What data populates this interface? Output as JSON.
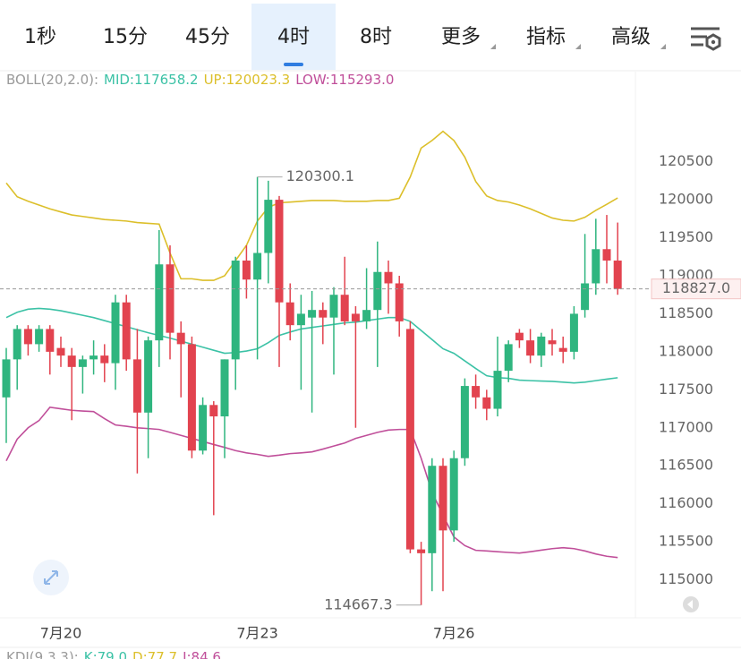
{
  "tabs": [
    "1秒",
    "15分",
    "45分",
    "4时",
    "8时",
    "更多",
    "指标",
    "高级"
  ],
  "selected_tab": 3,
  "chart_data": {
    "type": "candlestick",
    "indicator": "BOLL(20,2.0):",
    "categories": [
      null,
      null,
      null,
      null,
      null,
      "7月20",
      null,
      null,
      null,
      null,
      null,
      null,
      null,
      null,
      null,
      null,
      null,
      null,
      null,
      null,
      null,
      null,
      null,
      "7月23",
      null,
      null,
      null,
      null,
      null,
      null,
      null,
      null,
      null,
      null,
      null,
      null,
      null,
      null,
      null,
      null,
      null,
      "7月26",
      null,
      null,
      null,
      null,
      null,
      null,
      null,
      null,
      null,
      null,
      null,
      null,
      null,
      null,
      null
    ],
    "candles": {
      "up_color": "#2fb57f",
      "down_color": "#e2434f",
      "open": [
        117400,
        117900,
        118300,
        118100,
        118300,
        118050,
        117950,
        117800,
        117900,
        117950,
        117850,
        118650,
        117900,
        117200,
        118150,
        119150,
        118250,
        118100,
        116700,
        117300,
        117150,
        117900,
        119200,
        118950,
        119300,
        120000,
        118650,
        118350,
        118450,
        118550,
        118450,
        118750,
        118500,
        118400,
        118550,
        119050,
        118900,
        118300,
        115400,
        115350,
        116500,
        115650,
        116600,
        117550,
        117400,
        117250,
        117750,
        118250,
        118150,
        117950,
        118150,
        118050,
        118000,
        118550,
        118900,
        119350,
        119200
      ],
      "high": [
        118050,
        118350,
        118350,
        118350,
        118350,
        118200,
        118050,
        117950,
        118150,
        118100,
        118750,
        118750,
        118300,
        118200,
        119600,
        119400,
        118400,
        118200,
        117400,
        117350,
        117900,
        119250,
        119400,
        120300.1,
        120250,
        120050,
        118900,
        118750,
        118800,
        118650,
        118850,
        119250,
        118600,
        119100,
        119450,
        119200,
        119000,
        118400,
        115500,
        116600,
        116600,
        116700,
        117650,
        117700,
        117500,
        118200,
        118150,
        118300,
        118300,
        118250,
        118300,
        118200,
        118600,
        119550,
        119750,
        119800,
        119700
      ],
      "low": [
        116800,
        117500,
        117950,
        118000,
        117700,
        117800,
        117100,
        117450,
        117700,
        117600,
        117500,
        117750,
        116400,
        116600,
        117800,
        117900,
        117400,
        116600,
        116650,
        115850,
        116600,
        117500,
        118700,
        117900,
        118900,
        117800,
        118150,
        117500,
        117200,
        118100,
        117700,
        118350,
        117000,
        118300,
        117800,
        118500,
        118200,
        115350,
        114667.3,
        114850,
        114850,
        115500,
        116500,
        117250,
        117100,
        117150,
        117600,
        118050,
        117850,
        117800,
        117950,
        117850,
        117900,
        118450,
        118750,
        118900,
        118750
      ],
      "close": [
        117900,
        118300,
        118100,
        118300,
        118000,
        117950,
        117800,
        117900,
        117950,
        117850,
        118650,
        117900,
        117200,
        118150,
        119150,
        118250,
        118100,
        116700,
        117300,
        117150,
        117900,
        119200,
        118950,
        119300,
        120000,
        118650,
        118350,
        118500,
        118550,
        118450,
        118750,
        118400,
        118400,
        118550,
        119050,
        118900,
        118400,
        115400,
        115350,
        116500,
        115650,
        116600,
        117550,
        117400,
        117250,
        117750,
        118100,
        118150,
        117950,
        118200,
        118100,
        118000,
        118500,
        118900,
        119350,
        119200,
        118827
      ]
    },
    "series": [
      {
        "name": "MID",
        "legend_label": "MID:117658.2",
        "color": "#3cc2a6",
        "values": [
          118450,
          118520,
          118560,
          118570,
          118560,
          118540,
          118510,
          118480,
          118450,
          118410,
          118370,
          118330,
          118290,
          118250,
          118215,
          118180,
          118140,
          118100,
          118060,
          118020,
          117980,
          117990,
          118010,
          118040,
          118120,
          118215,
          118260,
          118300,
          118320,
          118340,
          118360,
          118380,
          118390,
          118410,
          118430,
          118450,
          118450,
          118400,
          118280,
          118160,
          118040,
          117980,
          117880,
          117780,
          117685,
          117660,
          117650,
          117627,
          117620,
          117615,
          117610,
          117600,
          117590,
          117600,
          117620,
          117640,
          117658.2
        ]
      },
      {
        "name": "UP",
        "legend_label": "UP:120023.3",
        "color": "#dcbf2a",
        "values": [
          120220,
          120040,
          119980,
          119930,
          119880,
          119840,
          119800,
          119780,
          119760,
          119740,
          119730,
          119720,
          119700,
          119690,
          119680,
          119300,
          118960,
          118960,
          118940,
          118940,
          119000,
          119200,
          119400,
          119720,
          119900,
          119960,
          119970,
          119980,
          119990,
          119990,
          119990,
          119980,
          119980,
          119980,
          119990,
          119990,
          120020,
          120300,
          120680,
          120780,
          120900,
          120780,
          120560,
          120240,
          120050,
          119990,
          119970,
          119930,
          119880,
          119820,
          119760,
          119730,
          119720,
          119770,
          119860,
          119940,
          120023.3
        ]
      },
      {
        "name": "LOW",
        "legend_label": "LOW:115293.0",
        "color": "#c04f9a",
        "values": [
          116565,
          116850,
          117000,
          117095,
          117270,
          117250,
          117230,
          117220,
          117213,
          117120,
          117037,
          117020,
          117000,
          116990,
          116978,
          116940,
          116900,
          116860,
          116820,
          116780,
          116742,
          116700,
          116670,
          116650,
          116624,
          116640,
          116660,
          116670,
          116683,
          116720,
          116760,
          116800,
          116860,
          116900,
          116940,
          116970,
          116978,
          116978,
          116600,
          116153,
          115850,
          115564,
          115450,
          115388,
          115380,
          115370,
          115360,
          115352,
          115370,
          115390,
          115410,
          115423,
          115410,
          115380,
          115340,
          115310,
          115293
        ]
      }
    ],
    "high_mark": 23,
    "low_mark": 38,
    "last_price": {
      "value": 118827,
      "label": "118827.0"
    },
    "ylim": [
      114500,
      121450
    ],
    "yticks": [
      115000,
      115500,
      116000,
      116500,
      117000,
      117500,
      118000,
      118500,
      119000,
      119500,
      120000,
      120500
    ],
    "grid": false
  },
  "kdj": {
    "title": "KDJ(9,3,3):",
    "items": [
      {
        "label": "K:79.0",
        "color": "#3cc2a6"
      },
      {
        "label": "D:77.7",
        "color": "#dcbf2a"
      },
      {
        "label": "J:84.6",
        "color": "#c04f9a"
      }
    ]
  }
}
